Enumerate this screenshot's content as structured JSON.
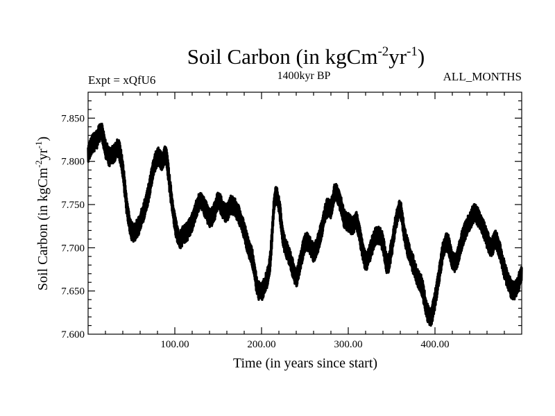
{
  "chart_data": {
    "type": "line",
    "title": "Soil Carbon (in kgCm",
    "title_sup1": "-2",
    "title_mid": "yr",
    "title_sup2": "-1",
    "title_end": ")",
    "subtitle_left": "Expt = xQfU6",
    "subtitle_center": "1400kyr BP",
    "subtitle_right": "ALL_MONTHS",
    "xlabel": "Time (in years since start)",
    "ylabel": "Soil Carbon (in kgCm",
    "ylabel_sup1": "-2",
    "ylabel_mid": "yr",
    "ylabel_sup2": "-1",
    "ylabel_end": ")",
    "xlim": [
      0,
      500
    ],
    "ylim": [
      7.6,
      7.88
    ],
    "xticks": [
      100,
      200,
      300,
      400
    ],
    "xtick_labels": [
      "100.00",
      "200.00",
      "300.00",
      "400.00"
    ],
    "yticks": [
      7.6,
      7.65,
      7.7,
      7.75,
      7.8,
      7.85
    ],
    "ytick_labels": [
      "7.600",
      "7.650",
      "7.700",
      "7.750",
      "7.800",
      "7.850"
    ],
    "grid": false,
    "line_color": "#000000",
    "series": [
      {
        "x": [
          0,
          5,
          10,
          15,
          20,
          25,
          30,
          35,
          40,
          45,
          50,
          55,
          60,
          65,
          70,
          75,
          80,
          85,
          90,
          95,
          100,
          105,
          110,
          115,
          120,
          125,
          130,
          135,
          140,
          145,
          150,
          155,
          160,
          165,
          170,
          175,
          180,
          185,
          190,
          195,
          200,
          205,
          210,
          215,
          220,
          225,
          230,
          235,
          240,
          245,
          250,
          255,
          260,
          265,
          270,
          275,
          280,
          285,
          290,
          295,
          300,
          305,
          310,
          315,
          320,
          325,
          330,
          335,
          340,
          345,
          350,
          355,
          360,
          365,
          370,
          375,
          380,
          385,
          390,
          395,
          400,
          405,
          410,
          415,
          420,
          425,
          430,
          435,
          440,
          445,
          450,
          455,
          460,
          465,
          470,
          475,
          480,
          485,
          490,
          495,
          500
        ],
        "y": [
          7.81,
          7.82,
          7.825,
          7.835,
          7.815,
          7.805,
          7.81,
          7.815,
          7.79,
          7.745,
          7.72,
          7.72,
          7.73,
          7.745,
          7.765,
          7.79,
          7.805,
          7.8,
          7.805,
          7.765,
          7.73,
          7.71,
          7.715,
          7.72,
          7.73,
          7.745,
          7.755,
          7.745,
          7.735,
          7.74,
          7.755,
          7.745,
          7.74,
          7.75,
          7.745,
          7.735,
          7.72,
          7.7,
          7.685,
          7.655,
          7.65,
          7.66,
          7.685,
          7.755,
          7.75,
          7.71,
          7.695,
          7.68,
          7.665,
          7.685,
          7.705,
          7.705,
          7.695,
          7.705,
          7.725,
          7.745,
          7.745,
          7.765,
          7.755,
          7.735,
          7.73,
          7.725,
          7.73,
          7.705,
          7.685,
          7.695,
          7.71,
          7.715,
          7.705,
          7.68,
          7.7,
          7.73,
          7.745,
          7.715,
          7.695,
          7.68,
          7.665,
          7.655,
          7.63,
          7.62,
          7.64,
          7.67,
          7.7,
          7.705,
          7.685,
          7.685,
          7.705,
          7.72,
          7.73,
          7.74,
          7.735,
          7.725,
          7.71,
          7.7,
          7.71,
          7.695,
          7.675,
          7.66,
          7.65,
          7.655,
          7.67
        ]
      }
    ]
  }
}
